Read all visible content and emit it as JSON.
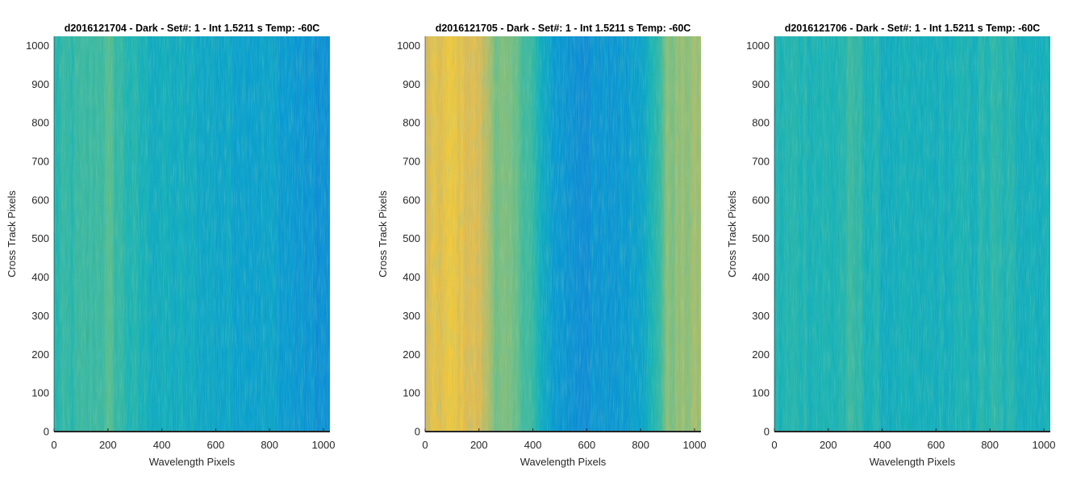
{
  "chart_data": [
    {
      "type": "heatmap",
      "title": "d2016121704 - Dark - Set#: 1 - Int 1.5211 s Temp: -60C",
      "xlabel": "Wavelength Pixels",
      "ylabel": "Cross Track Pixels",
      "xlim": [
        0,
        1024
      ],
      "ylim": [
        0,
        1024
      ],
      "xticks": [
        0,
        200,
        400,
        600,
        800,
        1000
      ],
      "yticks": [
        0,
        100,
        200,
        300,
        400,
        500,
        600,
        700,
        800,
        900,
        1000
      ],
      "colormap": "parula",
      "column_profile": [
        {
          "x": 0,
          "level": 0.52
        },
        {
          "x": 100,
          "level": 0.54
        },
        {
          "x": 200,
          "level": 0.58
        },
        {
          "x": 300,
          "level": 0.5
        },
        {
          "x": 400,
          "level": 0.47
        },
        {
          "x": 500,
          "level": 0.46
        },
        {
          "x": 600,
          "level": 0.44
        },
        {
          "x": 700,
          "level": 0.43
        },
        {
          "x": 800,
          "level": 0.42
        },
        {
          "x": 900,
          "level": 0.38
        },
        {
          "x": 1024,
          "level": 0.35
        }
      ]
    },
    {
      "type": "heatmap",
      "title": "d2016121705 - Dark - Set#: 1 - Int 1.5211 s Temp: -60C",
      "xlabel": "Wavelength Pixels",
      "ylabel": "Cross Track Pixels",
      "xlim": [
        0,
        1024
      ],
      "ylim": [
        0,
        1024
      ],
      "xticks": [
        0,
        200,
        400,
        600,
        800,
        1000
      ],
      "yticks": [
        0,
        100,
        200,
        300,
        400,
        500,
        600,
        700,
        800,
        900,
        1000
      ],
      "colormap": "parula",
      "column_profile": [
        {
          "x": 0,
          "level": 0.8
        },
        {
          "x": 100,
          "level": 0.86
        },
        {
          "x": 200,
          "level": 0.8
        },
        {
          "x": 260,
          "level": 0.66
        },
        {
          "x": 380,
          "level": 0.58
        },
        {
          "x": 450,
          "level": 0.42
        },
        {
          "x": 550,
          "level": 0.36
        },
        {
          "x": 650,
          "level": 0.36
        },
        {
          "x": 750,
          "level": 0.4
        },
        {
          "x": 850,
          "level": 0.5
        },
        {
          "x": 900,
          "level": 0.66
        },
        {
          "x": 1024,
          "level": 0.7
        }
      ]
    },
    {
      "type": "heatmap",
      "title": "d2016121706 - Dark - Set#: 1 - Int 1.5211 s Temp: -60C",
      "xlabel": "Wavelength Pixels",
      "ylabel": "Cross Track Pixels",
      "xlim": [
        0,
        1024
      ],
      "ylim": [
        0,
        1024
      ],
      "xticks": [
        0,
        200,
        400,
        600,
        800,
        1000
      ],
      "yticks": [
        0,
        100,
        200,
        300,
        400,
        500,
        600,
        700,
        800,
        900,
        1000
      ],
      "colormap": "parula",
      "column_profile": [
        {
          "x": 0,
          "level": 0.5
        },
        {
          "x": 100,
          "level": 0.52
        },
        {
          "x": 200,
          "level": 0.5
        },
        {
          "x": 300,
          "level": 0.54
        },
        {
          "x": 400,
          "level": 0.48
        },
        {
          "x": 500,
          "level": 0.47
        },
        {
          "x": 600,
          "level": 0.48
        },
        {
          "x": 700,
          "level": 0.49
        },
        {
          "x": 800,
          "level": 0.52
        },
        {
          "x": 900,
          "level": 0.5
        },
        {
          "x": 1024,
          "level": 0.48
        }
      ]
    }
  ]
}
